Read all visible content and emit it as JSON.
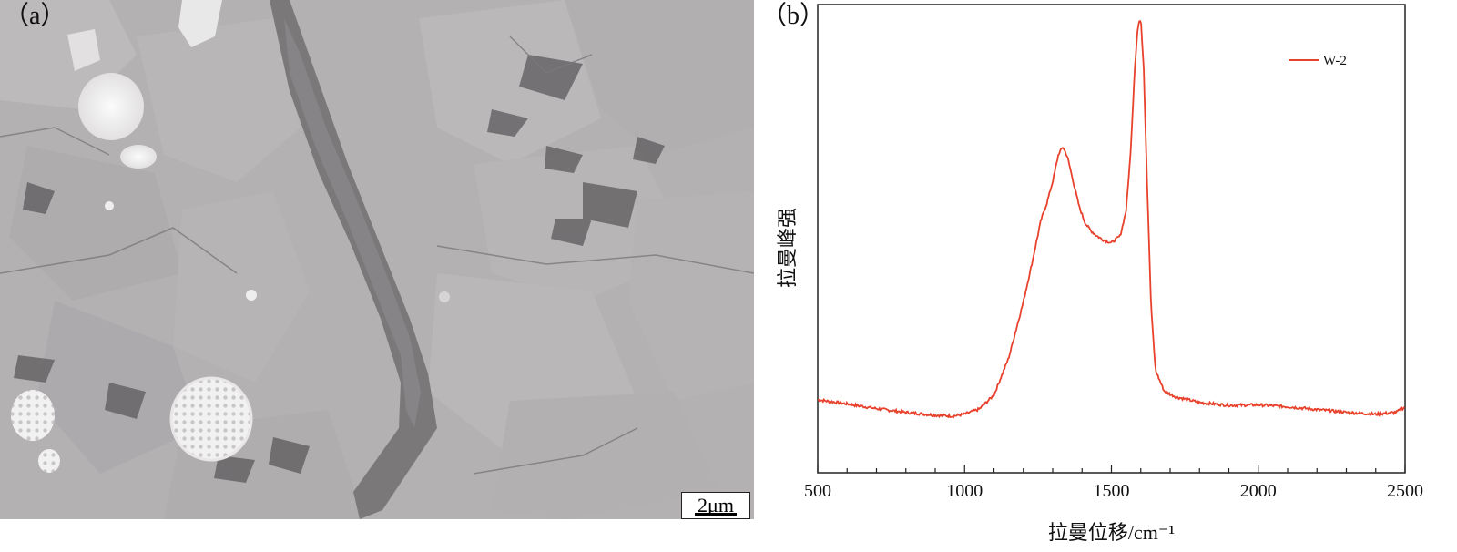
{
  "panels": {
    "a": {
      "label": "（a）",
      "scale_bar": "2μm"
    },
    "b": {
      "label": "（b）"
    }
  },
  "chart_data": {
    "type": "line",
    "title": "",
    "xlabel": "拉曼位移/cm⁻¹",
    "ylabel": "拉曼峰强",
    "xlim": [
      500,
      2500
    ],
    "ylim": [
      0,
      100
    ],
    "xticks": [
      "500",
      "1000",
      "1500",
      "2000",
      "2500"
    ],
    "grid": false,
    "legend_position": "top-right",
    "series": [
      {
        "name": "W-2",
        "color": "#e8412c",
        "x": [
          500,
          600,
          700,
          800,
          900,
          960,
          1000,
          1050,
          1100,
          1150,
          1200,
          1230,
          1260,
          1280,
          1300,
          1320,
          1335,
          1350,
          1370,
          1390,
          1410,
          1430,
          1450,
          1470,
          1500,
          1530,
          1550,
          1565,
          1580,
          1590,
          1600,
          1610,
          1620,
          1635,
          1650,
          1680,
          1720,
          1800,
          1900,
          2000,
          2100,
          2200,
          2300,
          2400,
          2470,
          2500
        ],
        "y": [
          15.6,
          14.7,
          13.7,
          12.9,
          12.3,
          12.1,
          12.5,
          13.6,
          16.6,
          24.5,
          36.5,
          44.9,
          53.9,
          57.6,
          62.2,
          68.1,
          69.6,
          67.5,
          62.2,
          56.9,
          53.4,
          51.7,
          50.6,
          49.8,
          49.1,
          50.6,
          56.0,
          68.1,
          86.9,
          95.2,
          97.1,
          86.6,
          65.3,
          35.7,
          21.9,
          17.4,
          16.2,
          15.0,
          14.4,
          14.5,
          14.1,
          13.5,
          12.9,
          12.5,
          12.9,
          14.1
        ]
      }
    ]
  }
}
